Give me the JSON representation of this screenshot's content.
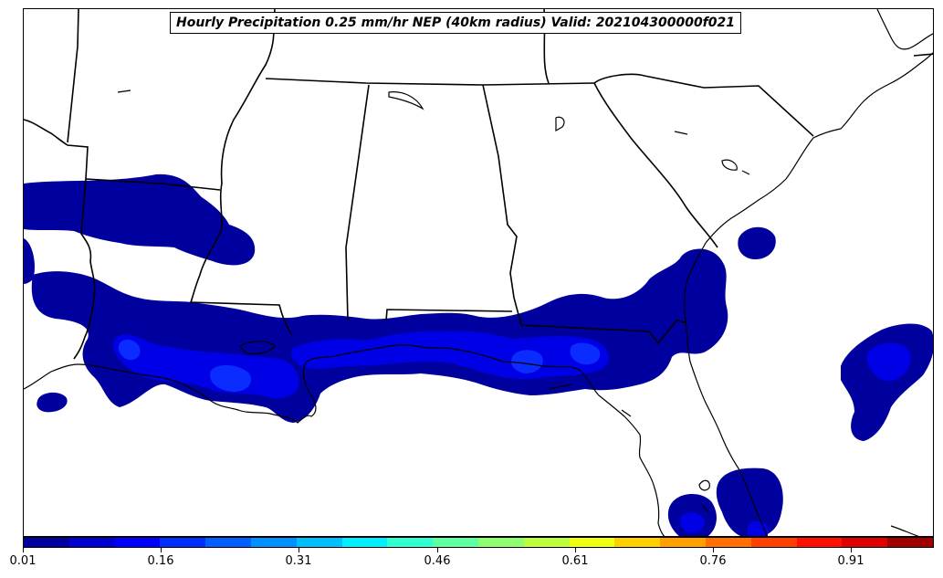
{
  "title": "Hourly Precipitation 0.25 mm/hr NEP (40km radius) Valid: 202104300000f021",
  "colorbar": {
    "min": 0.01,
    "max": 1.0,
    "ticks": [
      "0.01",
      "0.16",
      "0.31",
      "0.46",
      "0.61",
      "0.76",
      "0.91"
    ],
    "colors": [
      "#00009f",
      "#0000cf",
      "#0000ff",
      "#0030ff",
      "#0060ff",
      "#0090ff",
      "#00bfff",
      "#00efff",
      "#30ffcf",
      "#60ff9f",
      "#90ff6f",
      "#bfff3f",
      "#efff0f",
      "#ffcf00",
      "#ffa000",
      "#ff7000",
      "#ff4000",
      "#ff1000",
      "#df0000",
      "#a00000"
    ]
  },
  "map": {
    "region": "Southeastern United States",
    "land_color": "#ffffff",
    "border_color": "#000000",
    "precip_color_low": "#00009f",
    "precip_color_mid": "#0000e6",
    "precip_color_high": "#0a2cff"
  }
}
